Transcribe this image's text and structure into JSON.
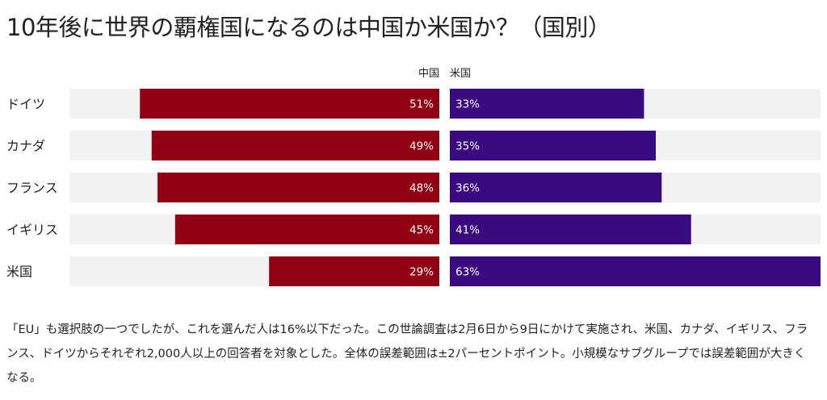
{
  "title": "10年後に世界の覇権国になるのは中国か米国か？（国別）",
  "colors": {
    "china": "#900012",
    "us": "#3a0a80",
    "track": "#f2f2f2",
    "text": "#222222",
    "bar_label": "#ffffff"
  },
  "chart_data": {
    "type": "bar",
    "orientation": "horizontal-diverging",
    "title": "10年後に世界の覇権国になるのは中国か米国か？（国別）",
    "categories": [
      "ドイツ",
      "カナダ",
      "フランス",
      "イギリス",
      "米国"
    ],
    "series": [
      {
        "name": "中国",
        "direction": "left",
        "values": [
          51,
          49,
          48,
          45,
          29
        ],
        "labels": [
          "51%",
          "49%",
          "48%",
          "45%",
          "29%"
        ]
      },
      {
        "name": "米国",
        "direction": "right",
        "values": [
          33,
          35,
          36,
          41,
          63
        ],
        "labels": [
          "33%",
          "35%",
          "36%",
          "41%",
          "63%"
        ]
      }
    ],
    "xlim": [
      0,
      63
    ],
    "unit": "%"
  },
  "note": "「EU」も選択肢の一つでしたが、これを選んだ人は16%以下だった。この世論調査は2月6日から9日にかけて実施され、米国、カナダ、イギリス、フランス、ドイツからそれぞれ2,000人以上の回答者を対象とした。全体の誤差範囲は±2パーセントポイント。小規模なサブグループでは誤差範囲が大きくなる。"
}
